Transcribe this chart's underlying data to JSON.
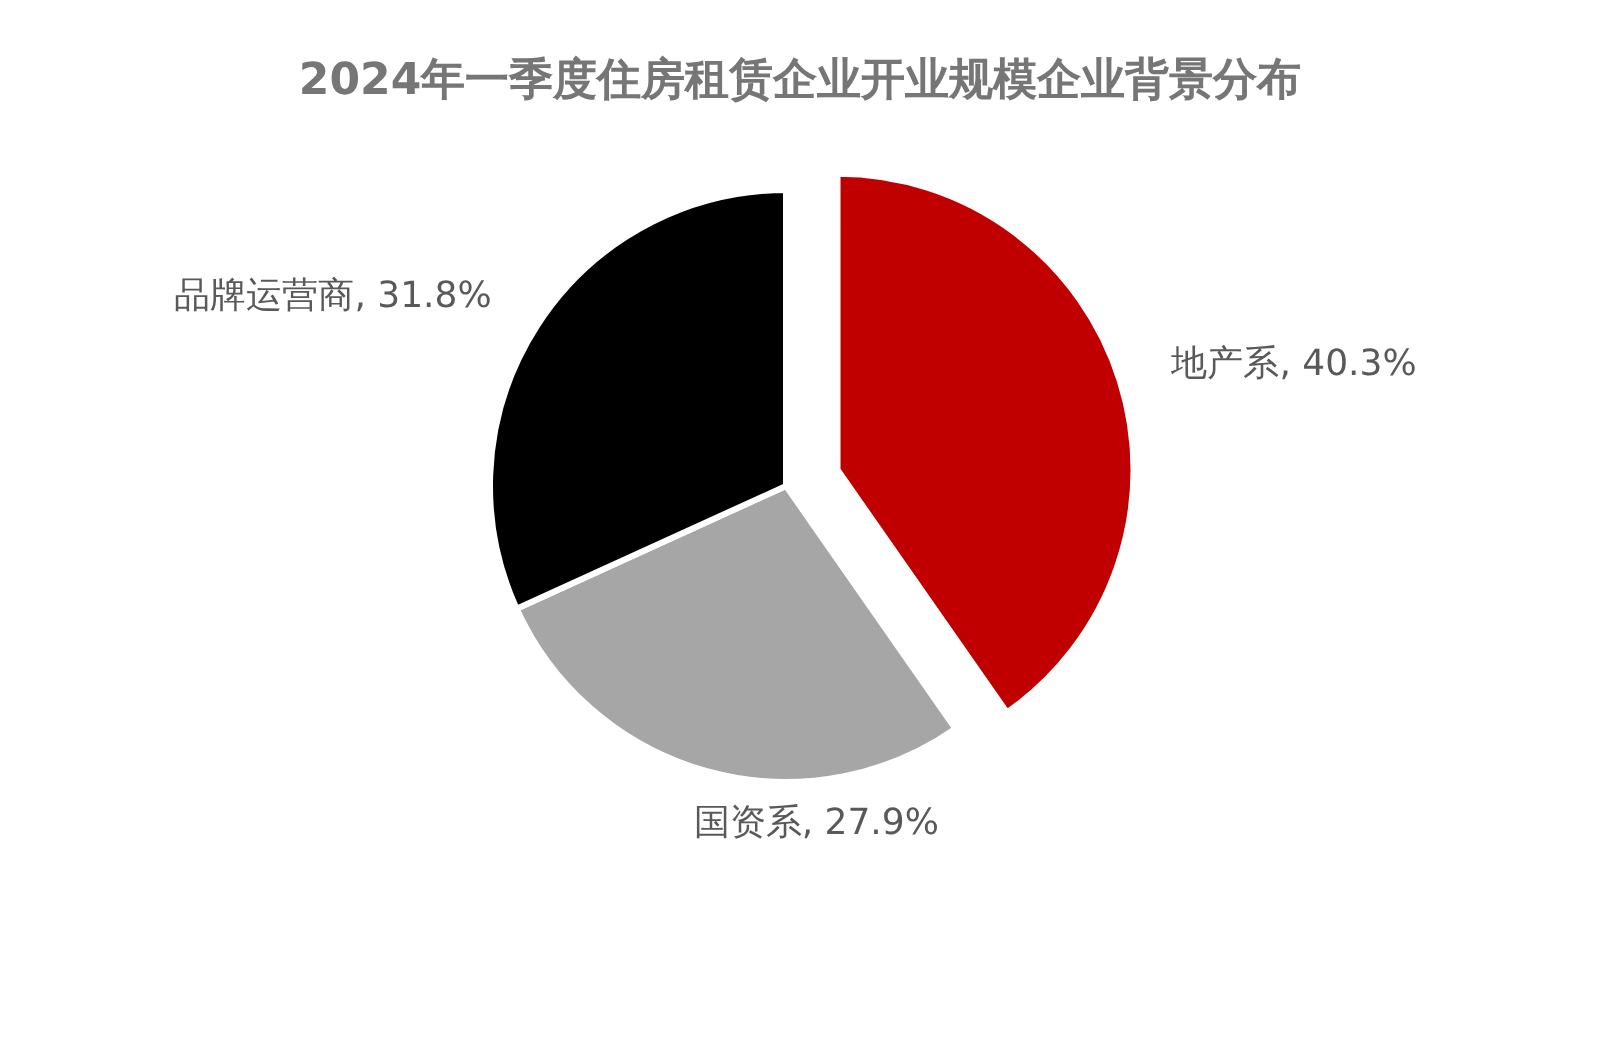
{
  "chart_data": {
    "type": "pie",
    "title": "2024年一季度住房租赁企业开业规模企业背景分布",
    "categories": [
      "地产系",
      "国资系",
      "品牌运营商"
    ],
    "values": [
      40.3,
      27.9,
      31.8
    ],
    "colors": [
      "#c00000",
      "#a6a6a6",
      "#000000"
    ],
    "value_labels": [
      "40.3%",
      "27.9%",
      "31.8%"
    ]
  }
}
